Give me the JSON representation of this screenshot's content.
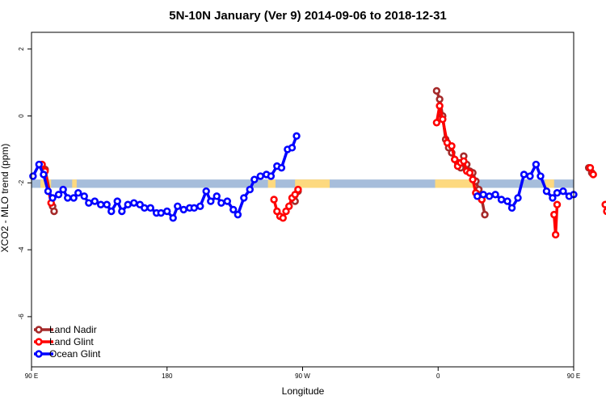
{
  "chart_data": {
    "type": "line",
    "title": "5N-10N January (Ver 9)   2014-09-06 to 2018-12-31",
    "xlabel": "Longitude",
    "ylabel": "XCO2 - MLO trend (ppm)",
    "xlim": [
      90,
      450
    ],
    "ylim": [
      -7.5,
      2.5
    ],
    "x_ticks": [
      {
        "value": 90,
        "label": "90 E"
      },
      {
        "value": 180,
        "label": "180"
      },
      {
        "value": 270,
        "label": "90 W"
      },
      {
        "value": 360,
        "label": "0"
      },
      {
        "value": 450,
        "label": "90 E"
      },
      {
        "value": 540,
        "label": "180"
      }
    ],
    "y_ticks": [
      {
        "value": 2,
        "label": "2"
      },
      {
        "value": 0,
        "label": "0"
      },
      {
        "value": -2,
        "label": "-2"
      },
      {
        "value": -4,
        "label": "-4"
      },
      {
        "value": -6,
        "label": "-6"
      }
    ],
    "grid": false,
    "legend_position": "bottom-left",
    "land_mask": {
      "y_range": [
        -2.15,
        -1.9
      ],
      "ocean_color": "#a6bddb",
      "land_color": "#fdd97f",
      "land_segments": [
        [
          96,
          103
        ],
        [
          117,
          120
        ],
        [
          247,
          252
        ],
        [
          265,
          288
        ],
        [
          358,
          386
        ],
        [
          431,
          437
        ],
        [
          453,
          460
        ],
        [
          468,
          472
        ]
      ]
    },
    "series": [
      {
        "name": "Land Nadir",
        "color": "#a52a2a",
        "points": [
          [
            97,
            -1.5
          ],
          [
            99,
            -1.6
          ],
          [
            104,
            -2.7
          ],
          [
            105,
            -2.85
          ],
          [
            265,
            -2.55
          ],
          [
            267,
            -2.25
          ],
          [
            359,
            0.75
          ],
          [
            361,
            0.5
          ],
          [
            363,
            0.0
          ],
          [
            365,
            -0.7
          ],
          [
            367,
            -0.95
          ],
          [
            369,
            -1.1
          ],
          [
            371,
            -1.3
          ],
          [
            373,
            -1.4
          ],
          [
            375,
            -1.55
          ],
          [
            377,
            -1.2
          ],
          [
            379,
            -1.45
          ],
          [
            381,
            -1.65
          ],
          [
            383,
            -1.7
          ],
          [
            385,
            -1.95
          ],
          [
            387,
            -2.2
          ],
          [
            389,
            -2.5
          ],
          [
            391,
            -2.95
          ],
          [
            460,
            -1.55
          ],
          [
            462,
            -1.7
          ],
          [
            473,
            -2.85
          ]
        ]
      },
      {
        "name": "Land Glint",
        "color": "#ff0000",
        "points": [
          [
            97,
            -1.45
          ],
          [
            99,
            -1.65
          ],
          [
            103,
            -2.6
          ],
          [
            251,
            -2.5
          ],
          [
            253,
            -2.85
          ],
          [
            255,
            -3.0
          ],
          [
            257,
            -3.05
          ],
          [
            259,
            -2.85
          ],
          [
            261,
            -2.7
          ],
          [
            263,
            -2.45
          ],
          [
            265,
            -2.35
          ],
          [
            267,
            -2.2
          ],
          [
            359,
            -0.2
          ],
          [
            361,
            0.3
          ],
          [
            363,
            -0.1
          ],
          [
            366,
            -0.8
          ],
          [
            369,
            -0.9
          ],
          [
            371,
            -1.3
          ],
          [
            373,
            -1.5
          ],
          [
            375,
            -1.4
          ],
          [
            377,
            -1.35
          ],
          [
            379,
            -1.65
          ],
          [
            381,
            -1.7
          ],
          [
            383,
            -1.9
          ],
          [
            385,
            -2.3
          ],
          [
            387,
            -2.4
          ],
          [
            389,
            -2.5
          ],
          [
            437,
            -2.95
          ],
          [
            438,
            -3.55
          ],
          [
            439,
            -2.65
          ],
          [
            461,
            -1.55
          ],
          [
            463,
            -1.75
          ],
          [
            471,
            -2.65
          ],
          [
            472,
            -2.85
          ]
        ]
      },
      {
        "name": "Ocean Glint",
        "color": "#0000ff",
        "points": [
          [
            91,
            -1.8
          ],
          [
            95,
            -1.45
          ],
          [
            98,
            -1.75
          ],
          [
            101,
            -2.25
          ],
          [
            104,
            -2.45
          ],
          [
            108,
            -2.35
          ],
          [
            111,
            -2.2
          ],
          [
            114,
            -2.45
          ],
          [
            118,
            -2.45
          ],
          [
            121,
            -2.3
          ],
          [
            125,
            -2.4
          ],
          [
            128,
            -2.6
          ],
          [
            132,
            -2.55
          ],
          [
            136,
            -2.65
          ],
          [
            140,
            -2.65
          ],
          [
            143,
            -2.85
          ],
          [
            147,
            -2.55
          ],
          [
            150,
            -2.85
          ],
          [
            154,
            -2.65
          ],
          [
            158,
            -2.6
          ],
          [
            162,
            -2.65
          ],
          [
            165,
            -2.75
          ],
          [
            169,
            -2.75
          ],
          [
            173,
            -2.9
          ],
          [
            176,
            -2.9
          ],
          [
            180,
            -2.85
          ],
          [
            184,
            -3.05
          ],
          [
            187,
            -2.7
          ],
          [
            191,
            -2.8
          ],
          [
            195,
            -2.75
          ],
          [
            198,
            -2.75
          ],
          [
            202,
            -2.7
          ],
          [
            206,
            -2.25
          ],
          [
            209,
            -2.55
          ],
          [
            213,
            -2.4
          ],
          [
            216,
            -2.6
          ],
          [
            220,
            -2.55
          ],
          [
            224,
            -2.8
          ],
          [
            227,
            -2.95
          ],
          [
            231,
            -2.45
          ],
          [
            235,
            -2.2
          ],
          [
            238,
            -1.9
          ],
          [
            242,
            -1.8
          ],
          [
            246,
            -1.75
          ],
          [
            249,
            -1.8
          ],
          [
            253,
            -1.5
          ],
          [
            256,
            -1.55
          ],
          [
            260,
            -1.0
          ],
          [
            263,
            -0.95
          ],
          [
            266,
            -0.6
          ],
          [
            386,
            -2.4
          ],
          [
            390,
            -2.35
          ],
          [
            394,
            -2.4
          ],
          [
            398,
            -2.35
          ],
          [
            402,
            -2.5
          ],
          [
            406,
            -2.55
          ],
          [
            409,
            -2.75
          ],
          [
            413,
            -2.45
          ],
          [
            417,
            -1.75
          ],
          [
            421,
            -1.8
          ],
          [
            425,
            -1.45
          ],
          [
            428,
            -1.8
          ],
          [
            432,
            -2.25
          ],
          [
            436,
            -2.45
          ],
          [
            439,
            -2.3
          ],
          [
            443,
            -2.25
          ],
          [
            447,
            -2.4
          ],
          [
            450,
            -2.35
          ]
        ]
      }
    ]
  }
}
